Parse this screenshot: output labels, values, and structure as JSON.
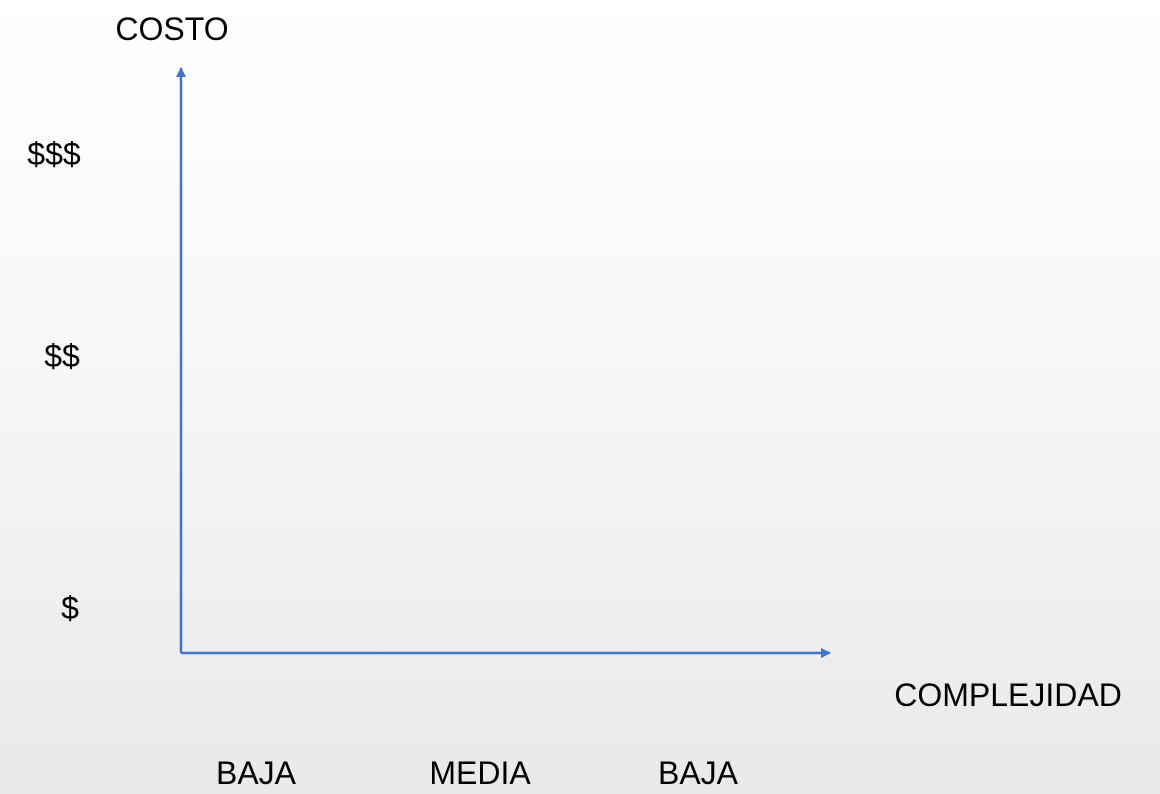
{
  "chart_data": {
    "type": "scatter",
    "ylabel": "COSTO",
    "xlabel": "COMPLEJIDAD",
    "y_ticks": [
      "$",
      "$$",
      "$$$"
    ],
    "x_ticks": [
      "BAJA",
      "MEDIA",
      "BAJA"
    ],
    "series": [],
    "grid": false,
    "axis_color": "#4472c4"
  }
}
